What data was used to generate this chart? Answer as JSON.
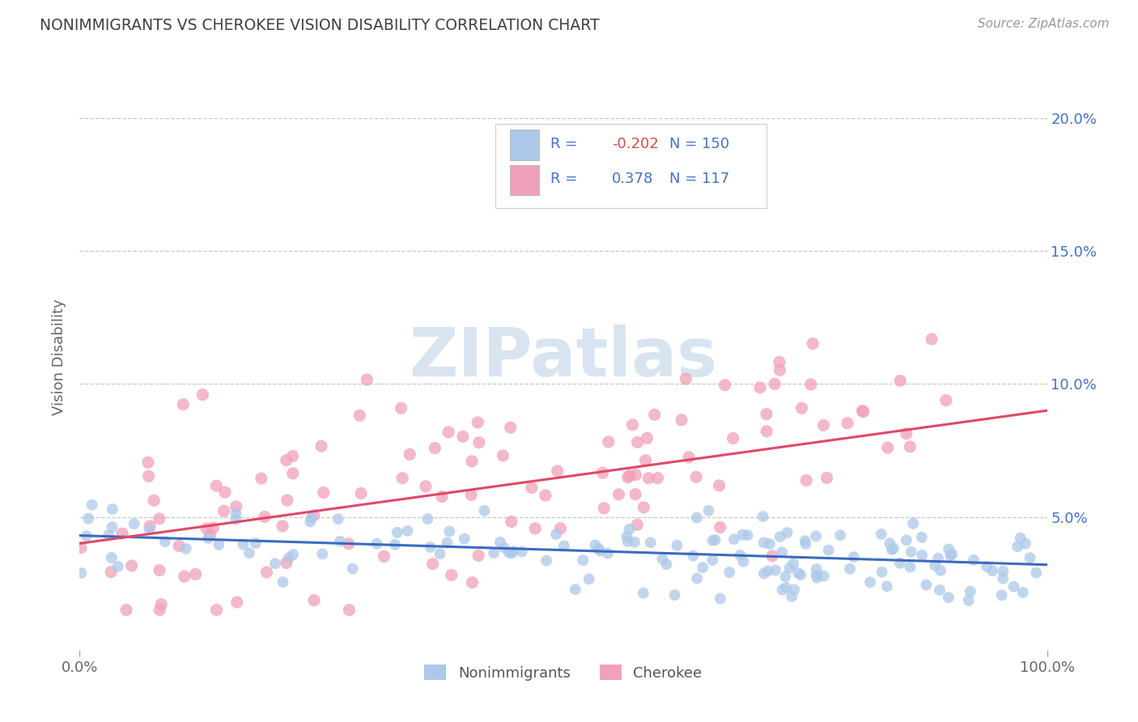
{
  "title": "NONIMMIGRANTS VS CHEROKEE VISION DISABILITY CORRELATION CHART",
  "source": "Source: ZipAtlas.com",
  "ylabel": "Vision Disability",
  "nonimmigrants": {
    "R": -0.202,
    "N": 150,
    "color": "#adc8e8",
    "line_color": "#3a6bbf",
    "label": "Nonimmigrants"
  },
  "cherokee": {
    "R": 0.378,
    "N": 117,
    "color": "#f0a0b8",
    "line_color": "#e04868",
    "label": "Cherokee"
  },
  "xlim": [
    0,
    100
  ],
  "ylim": [
    0,
    22
  ],
  "ytick_vals": [
    5,
    10,
    15,
    20
  ],
  "yticklabels": [
    "5.0%",
    "10.0%",
    "15.0%",
    "20.0%"
  ],
  "xticklabels": [
    "0.0%",
    "100.0%"
  ],
  "xtick_vals": [
    0,
    100
  ],
  "background_color": "#ffffff",
  "grid_color": "#c8c8c8",
  "title_color": "#404040",
  "axis_color": "#4472c4",
  "watermark_color": "#d8e4f0",
  "legend_text_color": "#4472c4",
  "r_neg_color": "#e04848",
  "blue_line_start": 4.3,
  "blue_line_end": 3.2,
  "pink_line_start": 4.0,
  "pink_line_end": 9.0
}
